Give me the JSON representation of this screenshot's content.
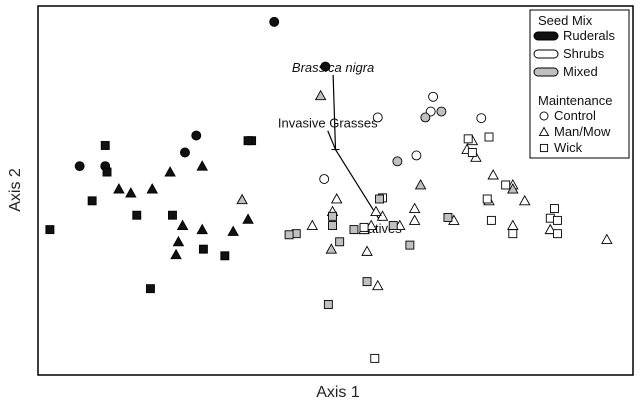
{
  "chart_data": {
    "type": "scatter",
    "title": "",
    "xlabel": "Axis 1",
    "ylabel": "Axis 2",
    "xlim": [
      0,
      100
    ],
    "ylim": [
      0,
      100
    ],
    "grid": false,
    "ticks": false,
    "legend": {
      "placement": "top-right",
      "seed_title": "Seed Mix",
      "seed_items": [
        {
          "key": "ruderals",
          "label": "Ruderals",
          "fill": "#111111"
        },
        {
          "key": "shrubs",
          "label": "Shrubs",
          "fill": "#ffffff"
        },
        {
          "key": "mixed",
          "label": "Mixed",
          "fill": "#c0c0c0"
        }
      ],
      "maint_title": "Maintenance",
      "maint_items": [
        {
          "key": "control",
          "label": "Control",
          "shape": "circle"
        },
        {
          "key": "manmow",
          "label": "Man/Mow",
          "shape": "triangle"
        },
        {
          "key": "wick",
          "label": "Wick",
          "shape": "square"
        }
      ]
    },
    "vectors": [
      {
        "label": "Brassica nigra",
        "italic": true,
        "x": 49.6,
        "y": 81.3
      },
      {
        "label": "Invasive Grasses",
        "italic": false,
        "x": 48.7,
        "y": 66.2
      },
      {
        "label": "Natives",
        "italic": false,
        "x": 57.5,
        "y": 41.8
      }
    ],
    "vector_origin": {
      "x": 50.0,
      "y": 61.1
    },
    "series": [
      {
        "seed": "ruderals",
        "maint": "control",
        "points": [
          [
            39.7,
            95.7
          ],
          [
            48.3,
            83.6
          ],
          [
            26.6,
            64.9
          ],
          [
            24.7,
            60.3
          ],
          [
            7.0,
            56.6
          ],
          [
            11.3,
            56.6
          ]
        ]
      },
      {
        "seed": "ruderals",
        "maint": "manmow",
        "points": [
          [
            13.6,
            50.4
          ],
          [
            15.6,
            49.3
          ],
          [
            19.2,
            50.4
          ],
          [
            22.2,
            55.0
          ],
          [
            27.6,
            56.6
          ],
          [
            24.3,
            40.5
          ],
          [
            27.6,
            39.4
          ],
          [
            23.6,
            36.1
          ],
          [
            23.2,
            32.6
          ],
          [
            32.8,
            38.9
          ],
          [
            35.3,
            42.2
          ]
        ]
      },
      {
        "seed": "ruderals",
        "maint": "wick",
        "points": [
          [
            11.3,
            62.2
          ],
          [
            11.6,
            55.0
          ],
          [
            9.1,
            47.2
          ],
          [
            16.6,
            43.3
          ],
          [
            22.6,
            43.3
          ],
          [
            35.9,
            63.5
          ],
          [
            35.3,
            63.5
          ],
          [
            2.0,
            39.4
          ],
          [
            27.8,
            34.1
          ],
          [
            31.4,
            32.3
          ],
          [
            18.9,
            23.4
          ]
        ]
      },
      {
        "seed": "shrubs",
        "maint": "control",
        "points": [
          [
            66.4,
            75.4
          ],
          [
            57.1,
            69.8
          ],
          [
            66.0,
            71.4
          ],
          [
            74.5,
            69.6
          ],
          [
            63.6,
            59.5
          ],
          [
            48.1,
            53.1
          ]
        ]
      },
      {
        "seed": "shrubs",
        "maint": "manmow",
        "points": [
          [
            73.0,
            63.5
          ],
          [
            72.1,
            61.1
          ],
          [
            73.6,
            59.0
          ],
          [
            76.5,
            54.2
          ],
          [
            79.8,
            51.5
          ],
          [
            81.8,
            47.2
          ],
          [
            75.8,
            47.2
          ],
          [
            69.9,
            41.9
          ],
          [
            63.3,
            45.1
          ],
          [
            63.3,
            41.9
          ],
          [
            60.8,
            40.5
          ],
          [
            57.9,
            43.0
          ],
          [
            56.8,
            44.3
          ],
          [
            54.8,
            39.4
          ],
          [
            55.3,
            33.5
          ],
          [
            57.1,
            24.2
          ],
          [
            50.2,
            47.7
          ],
          [
            49.5,
            44.3
          ],
          [
            56.0,
            40.5
          ],
          [
            46.1,
            40.5
          ],
          [
            95.6,
            36.7
          ],
          [
            86.1,
            39.4
          ],
          [
            79.8,
            40.5
          ]
        ]
      },
      {
        "seed": "shrubs",
        "maint": "wick",
        "points": [
          [
            72.3,
            64.0
          ],
          [
            75.8,
            64.5
          ],
          [
            73.0,
            60.3
          ],
          [
            78.6,
            51.5
          ],
          [
            75.5,
            47.7
          ],
          [
            76.2,
            41.9
          ],
          [
            79.8,
            38.3
          ],
          [
            86.8,
            45.1
          ],
          [
            86.1,
            42.5
          ],
          [
            87.3,
            38.3
          ],
          [
            87.3,
            41.9
          ],
          [
            56.6,
            4.5
          ],
          [
            57.9,
            48.0
          ],
          [
            54.8,
            40.0
          ]
        ]
      },
      {
        "seed": "mixed",
        "maint": "control",
        "points": [
          [
            65.1,
            69.8
          ],
          [
            67.8,
            71.4
          ],
          [
            60.4,
            57.9
          ]
        ]
      },
      {
        "seed": "mixed",
        "maint": "manmow",
        "points": [
          [
            47.5,
            75.7
          ],
          [
            34.3,
            47.5
          ],
          [
            49.3,
            34.1
          ],
          [
            64.3,
            51.5
          ],
          [
            79.8,
            50.4
          ]
        ]
      },
      {
        "seed": "mixed",
        "maint": "wick",
        "points": [
          [
            43.4,
            38.3
          ],
          [
            49.5,
            40.5
          ],
          [
            49.5,
            43.0
          ],
          [
            53.1,
            39.4
          ],
          [
            57.4,
            47.7
          ],
          [
            59.7,
            40.5
          ],
          [
            68.9,
            42.7
          ],
          [
            62.5,
            35.2
          ],
          [
            50.7,
            36.1
          ],
          [
            55.3,
            25.3
          ],
          [
            48.8,
            19.1
          ],
          [
            42.2,
            38.0
          ]
        ]
      }
    ]
  }
}
